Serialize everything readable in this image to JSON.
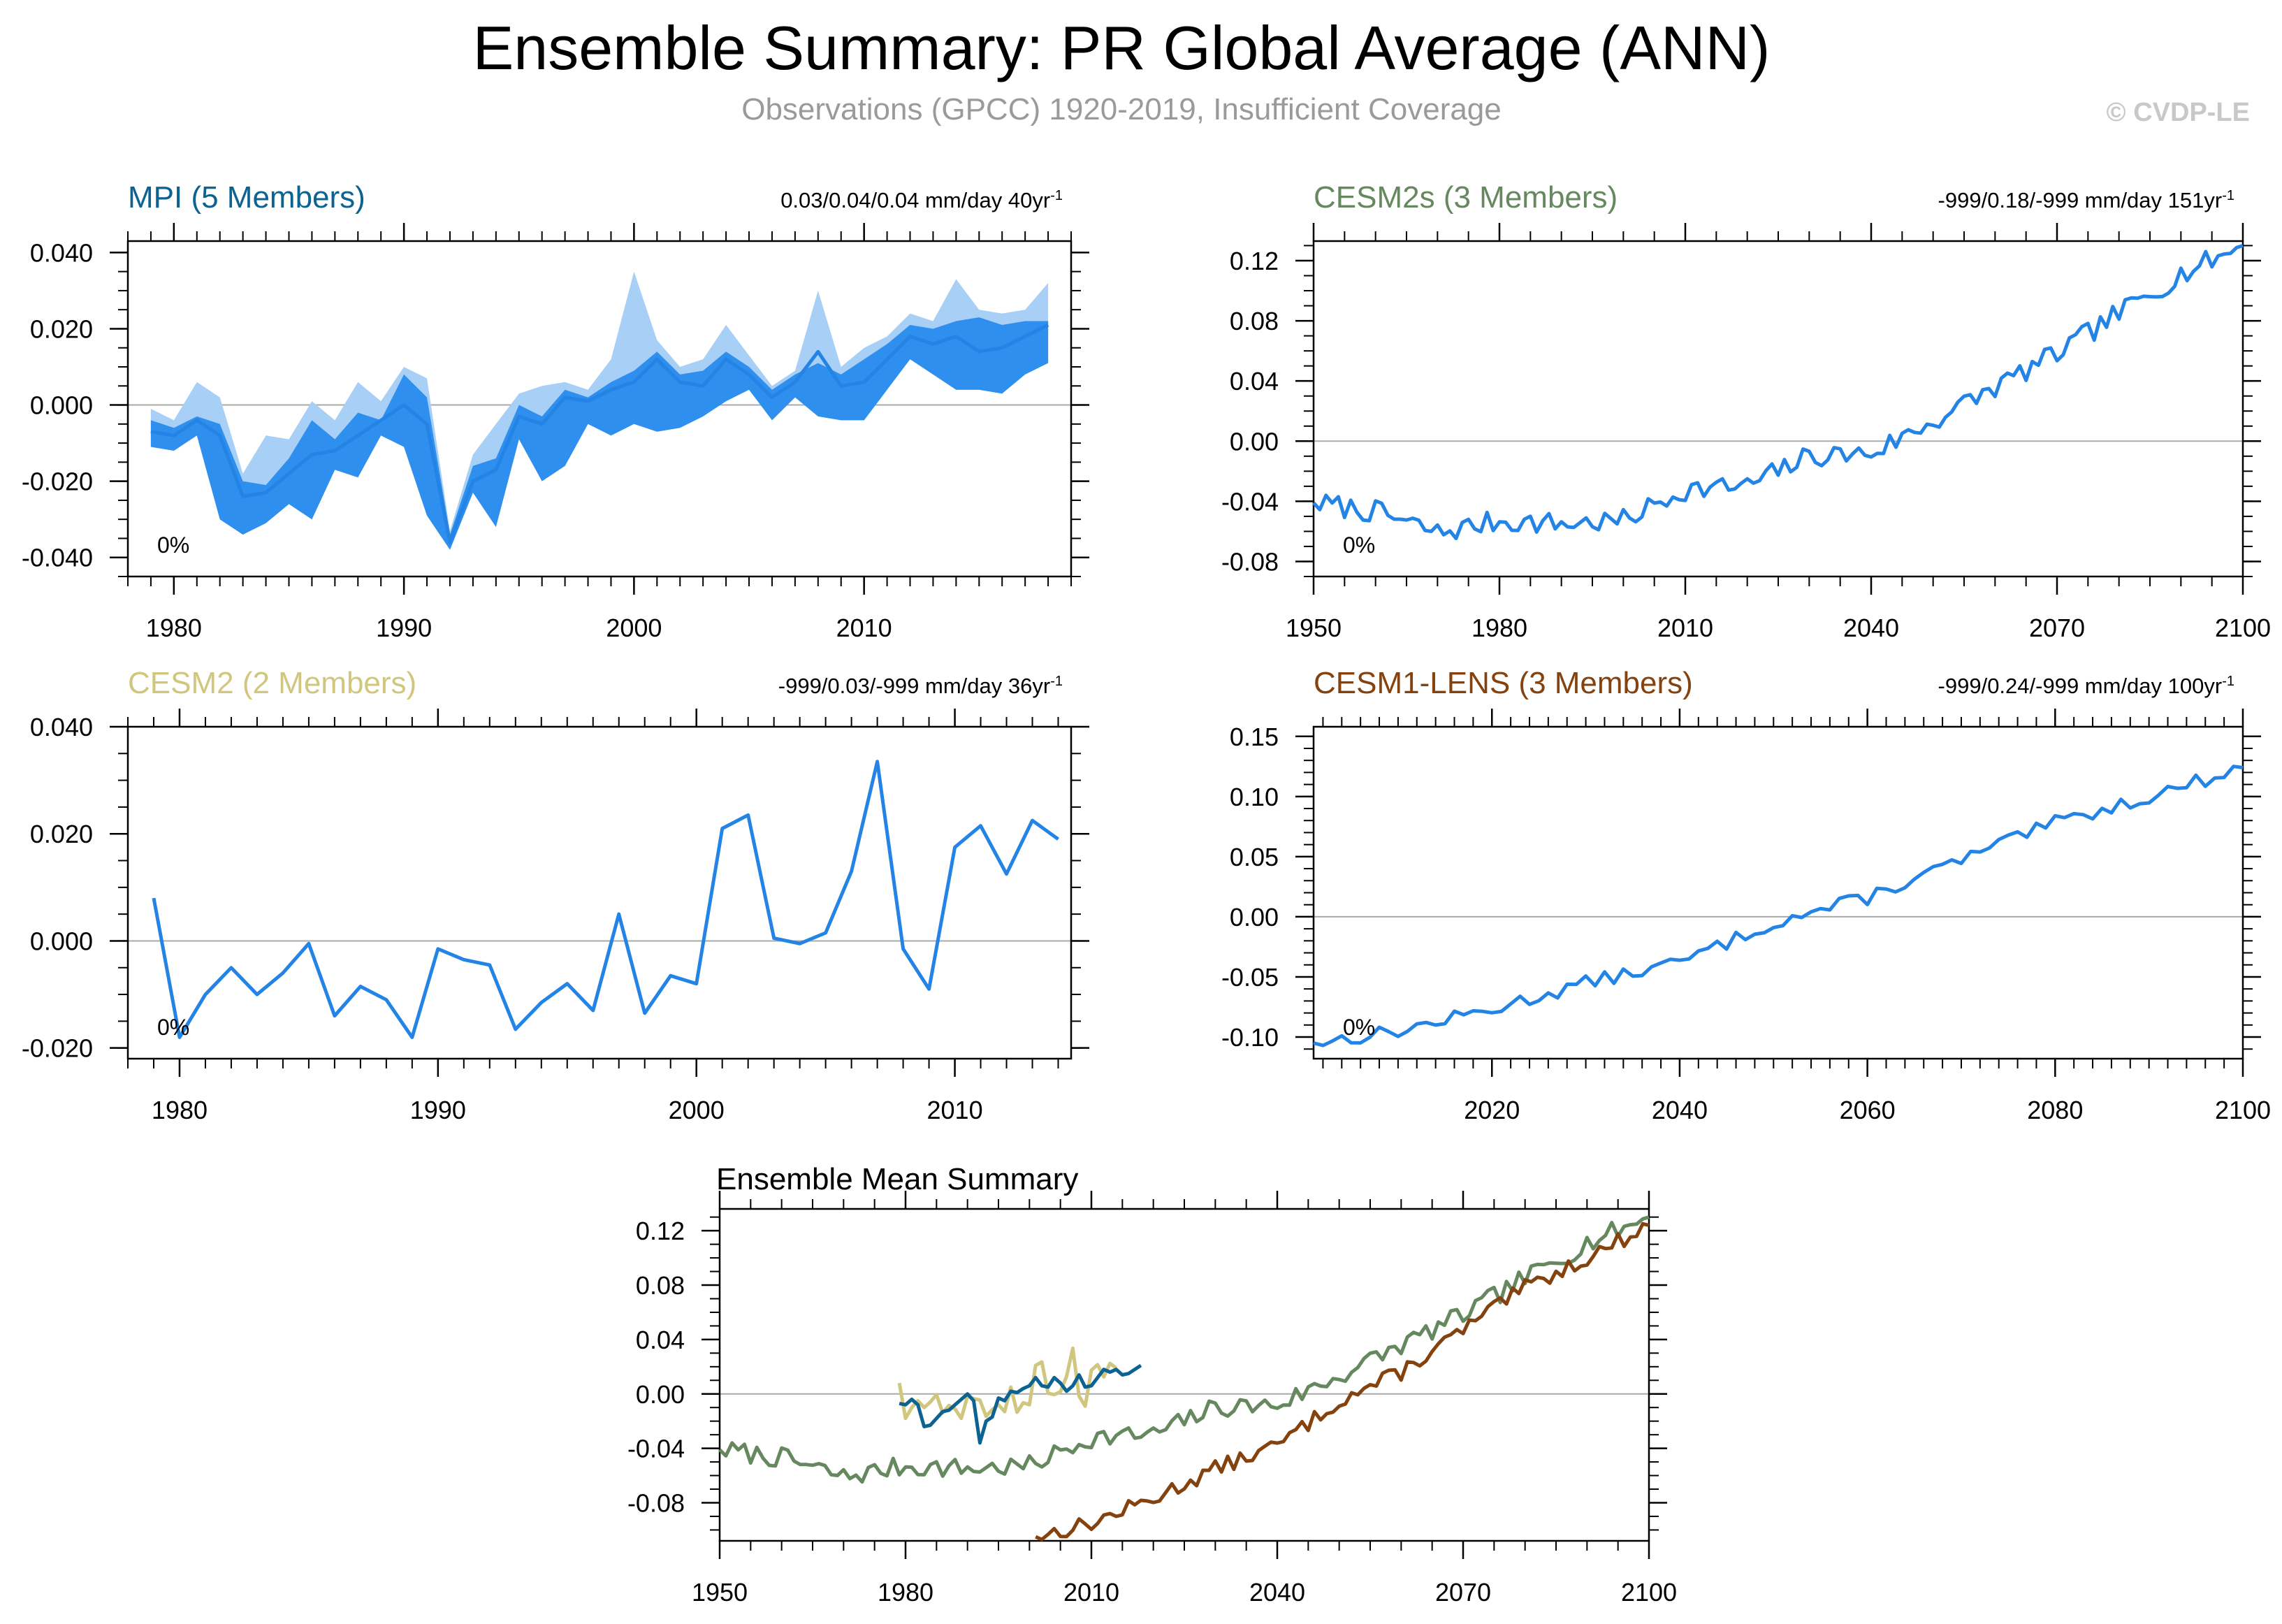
{
  "figure": {
    "title": "Ensemble Summary: PR Global Average (ANN)",
    "subtitle": "Observations (GPCC) 1920-2019, Insufficient Coverage",
    "copyright": "© CVDP-LE",
    "colors": {
      "spread_light": "#a8d0f6",
      "spread_dark": "#2f8fee",
      "line_blue": "#2384e6",
      "mpi": "#0c6291",
      "cesm2": "#d1c67e",
      "cesm2s": "#66885f",
      "cesm1": "#84420f",
      "zero_line": "#aaaaaa"
    }
  },
  "chart_data": [
    {
      "id": "mpi",
      "type": "line",
      "title": "MPI (5 Members)",
      "title_color": "#0c6291",
      "trend": "0.03/0.04/0.04 mm/day 40yr",
      "trend_sup": "-1",
      "pct_label": "0%",
      "xlim": [
        1978,
        2019
      ],
      "ylim": [
        -0.045,
        0.043
      ],
      "xticks": [
        1980,
        1990,
        2000,
        2010
      ],
      "ytick_values": [
        -0.04,
        -0.02,
        0.0,
        0.02,
        0.04
      ],
      "ytick_labels": [
        "-0.040",
        "-0.020",
        "0.000",
        "0.020",
        "0.040"
      ],
      "minor_y": 0.005,
      "minor_x": 1,
      "start_year": 1979,
      "band_light_upper": [
        -0.001,
        -0.004,
        0.006,
        0.002,
        -0.018,
        -0.008,
        -0.009,
        0.001,
        -0.004,
        0.006,
        0.001,
        0.01,
        0.007,
        -0.033,
        -0.013,
        -0.005,
        0.003,
        0.005,
        0.006,
        0.004,
        0.012,
        0.035,
        0.017,
        0.01,
        0.012,
        0.021,
        0.013,
        0.005,
        0.009,
        0.03,
        0.01,
        0.015,
        0.018,
        0.024,
        0.022,
        0.033,
        0.025,
        0.024,
        0.025,
        0.032
      ],
      "band_dark_upper": [
        -0.004,
        -0.006,
        -0.003,
        -0.005,
        -0.02,
        -0.021,
        -0.014,
        -0.004,
        -0.009,
        -0.002,
        -0.004,
        0.008,
        0.002,
        -0.034,
        -0.016,
        -0.014,
        0.0,
        -0.003,
        0.004,
        0.002,
        0.006,
        0.009,
        0.014,
        0.008,
        0.009,
        0.014,
        0.01,
        0.004,
        0.008,
        0.011,
        0.008,
        0.012,
        0.016,
        0.021,
        0.02,
        0.022,
        0.023,
        0.021,
        0.022,
        0.022
      ],
      "band_dark_lower": [
        -0.011,
        -0.012,
        -0.008,
        -0.03,
        -0.034,
        -0.031,
        -0.026,
        -0.03,
        -0.017,
        -0.019,
        -0.008,
        -0.011,
        -0.029,
        -0.038,
        -0.023,
        -0.032,
        -0.009,
        -0.02,
        -0.016,
        -0.005,
        -0.008,
        -0.005,
        -0.007,
        -0.006,
        -0.003,
        0.001,
        0.004,
        -0.004,
        0.002,
        -0.003,
        -0.004,
        -0.004,
        0.004,
        0.012,
        0.008,
        0.004,
        0.004,
        0.003,
        0.008,
        0.011
      ],
      "values": [
        -0.007,
        -0.008,
        -0.004,
        -0.008,
        -0.024,
        -0.023,
        -0.018,
        -0.013,
        -0.012,
        -0.008,
        -0.004,
        0.0,
        -0.005,
        -0.036,
        -0.02,
        -0.017,
        -0.003,
        -0.005,
        0.002,
        0.001,
        0.004,
        0.006,
        0.012,
        0.006,
        0.005,
        0.012,
        0.008,
        0.002,
        0.006,
        0.014,
        0.005,
        0.006,
        0.012,
        0.018,
        0.016,
        0.018,
        0.014,
        0.015,
        0.018,
        0.021
      ]
    },
    {
      "id": "cesm2s",
      "type": "line",
      "title": "CESM2s (3 Members)",
      "title_color": "#66885f",
      "trend": "-999/0.18/-999 mm/day 151yr",
      "trend_sup": "-1",
      "pct_label": "0%",
      "xlim": [
        1950,
        2100
      ],
      "ylim": [
        -0.09,
        0.133
      ],
      "xticks": [
        1950,
        1980,
        2010,
        2040,
        2070,
        2100
      ],
      "ytick_values": [
        -0.08,
        -0.04,
        0.0,
        0.04,
        0.08,
        0.12
      ],
      "ytick_labels": [
        "-0.08",
        "-0.04",
        "0.00",
        "0.04",
        "0.08",
        "0.12"
      ],
      "minor_y": 0.01,
      "minor_x": 5,
      "x_knots": [
        1950,
        1960,
        1970,
        1980,
        1990,
        2000,
        2010,
        2020,
        2030,
        2040,
        2050,
        2060,
        2070,
        2080,
        2090,
        2100
      ],
      "y_knots": [
        -0.041,
        -0.047,
        -0.061,
        -0.053,
        -0.055,
        -0.053,
        -0.032,
        -0.03,
        -0.01,
        -0.008,
        0.013,
        0.036,
        0.058,
        0.085,
        0.111,
        0.13
      ],
      "noise_amp": 0.0075,
      "seed": 7
    },
    {
      "id": "cesm2",
      "type": "line",
      "title": "CESM2 (2 Members)",
      "title_color": "#d1c67e",
      "trend": "-999/0.03/-999 mm/day 36yr",
      "trend_sup": "-1",
      "pct_label": "0%",
      "xlim": [
        1978,
        2014.5
      ],
      "ylim": [
        -0.022,
        0.04
      ],
      "xticks": [
        1980,
        1990,
        2000,
        2010
      ],
      "ytick_values": [
        -0.02,
        0.0,
        0.02,
        0.04
      ],
      "ytick_labels": [
        "-0.020",
        "0.000",
        "0.020",
        "0.040"
      ],
      "minor_y": 0.005,
      "minor_x": 1,
      "start_year": 1979,
      "values": [
        0.008,
        -0.018,
        -0.01,
        -0.005,
        -0.01,
        -0.006,
        -0.0005,
        -0.014,
        -0.0085,
        -0.011,
        -0.018,
        -0.0015,
        -0.0035,
        -0.0045,
        -0.0165,
        -0.0115,
        -0.008,
        -0.013,
        0.005,
        -0.0135,
        -0.0065,
        -0.008,
        0.021,
        0.0235,
        0.0005,
        -0.0005,
        0.0015,
        0.013,
        0.0335,
        -0.0015,
        -0.009,
        0.0175,
        0.0215,
        0.0125,
        0.0225,
        0.019
      ]
    },
    {
      "id": "cesm1",
      "type": "line",
      "title": "CESM1-LENS (3 Members)",
      "title_color": "#84420f",
      "trend": "-999/0.24/-999 mm/day 100yr",
      "trend_sup": "-1",
      "pct_label": "0%",
      "xlim": [
        2001,
        2100
      ],
      "ylim": [
        -0.118,
        0.158
      ],
      "xticks": [
        2020,
        2040,
        2060,
        2080,
        2100
      ],
      "ytick_values": [
        -0.1,
        -0.05,
        0.0,
        0.05,
        0.1,
        0.15
      ],
      "ytick_labels": [
        "-0.10",
        "-0.05",
        "0.00",
        "0.05",
        "0.10",
        "0.15"
      ],
      "minor_y": 0.01,
      "minor_x": 2,
      "x_knots": [
        2001,
        2010,
        2020,
        2030,
        2040,
        2050,
        2060,
        2070,
        2080,
        2090,
        2100
      ],
      "y_knots": [
        -0.105,
        -0.095,
        -0.077,
        -0.055,
        -0.038,
        -0.005,
        0.016,
        0.047,
        0.078,
        0.1,
        0.124
      ],
      "noise_amp": 0.006,
      "seed": 13
    }
  ],
  "summary": {
    "title": "Ensemble Mean Summary",
    "xlim": [
      1950,
      2100
    ],
    "ylim": [
      -0.108,
      0.136
    ],
    "xticks": [
      1950,
      1980,
      2010,
      2040,
      2070,
      2100
    ],
    "ytick_values": [
      -0.08,
      -0.04,
      0.0,
      0.04,
      0.08,
      0.12
    ],
    "ytick_labels": [
      "-0.08",
      "-0.04",
      "0.00",
      "0.04",
      "0.08",
      "0.12"
    ],
    "minor_y": 0.01,
    "minor_x": 5,
    "series": [
      {
        "name": "CESM2s",
        "source": "cesm2s",
        "color": "#66885f"
      },
      {
        "name": "CESM1-LENS",
        "source": "cesm1",
        "color": "#84420f"
      },
      {
        "name": "CESM2",
        "source": "cesm2",
        "color": "#d1c67e"
      },
      {
        "name": "MPI",
        "source": "mpi",
        "color": "#0c6291"
      }
    ]
  }
}
